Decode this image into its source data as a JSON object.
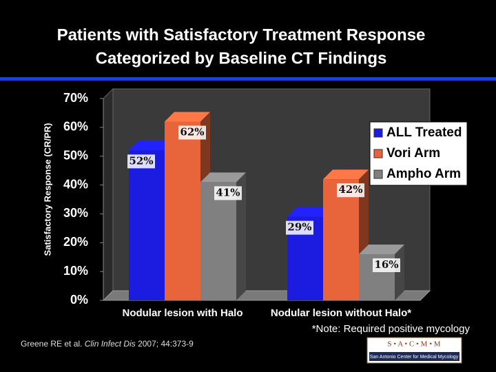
{
  "chart_data": {
    "type": "bar",
    "title": [
      "Patients with Satisfactory Treatment Response",
      "Categorized by Baseline CT Findings"
    ],
    "y_label": "Satisfactory Response (CR/PR)",
    "categories": [
      "Nodular lesion with Halo",
      "Nodular lesion without Halo*"
    ],
    "series": [
      {
        "name": "ALL Treated",
        "color": "#1c1ce0",
        "values": [
          52,
          29
        ],
        "value_labels": [
          "52%",
          "29%"
        ]
      },
      {
        "name": "Vori Arm",
        "color": "#e8643a",
        "values": [
          62,
          42
        ],
        "value_labels": [
          "62%",
          "42%"
        ]
      },
      {
        "name": "Ampho Arm",
        "color": "#808080",
        "values": [
          41,
          16
        ],
        "value_labels": [
          "41%",
          "16%"
        ]
      }
    ],
    "ylim": [
      0,
      70
    ],
    "yticks": [
      {
        "value": 0,
        "label": "0%"
      },
      {
        "value": 10,
        "label": "10%"
      },
      {
        "value": 20,
        "label": "20%"
      },
      {
        "value": 30,
        "label": "30%"
      },
      {
        "value": 40,
        "label": "40%"
      },
      {
        "value": 50,
        "label": "50%"
      },
      {
        "value": 60,
        "label": "60%"
      },
      {
        "value": 70,
        "label": "70%"
      }
    ],
    "legend": "right",
    "note": "*Note:  Required positive mycology"
  },
  "citation": {
    "authors": "Greene RE et al. ",
    "journal": "Clin Infect Dis",
    "details": " 2007; 44:373-9"
  },
  "logo": {
    "letters": "S • A • C • M • M",
    "name": "San Antonio Center for Medical Mycology"
  }
}
